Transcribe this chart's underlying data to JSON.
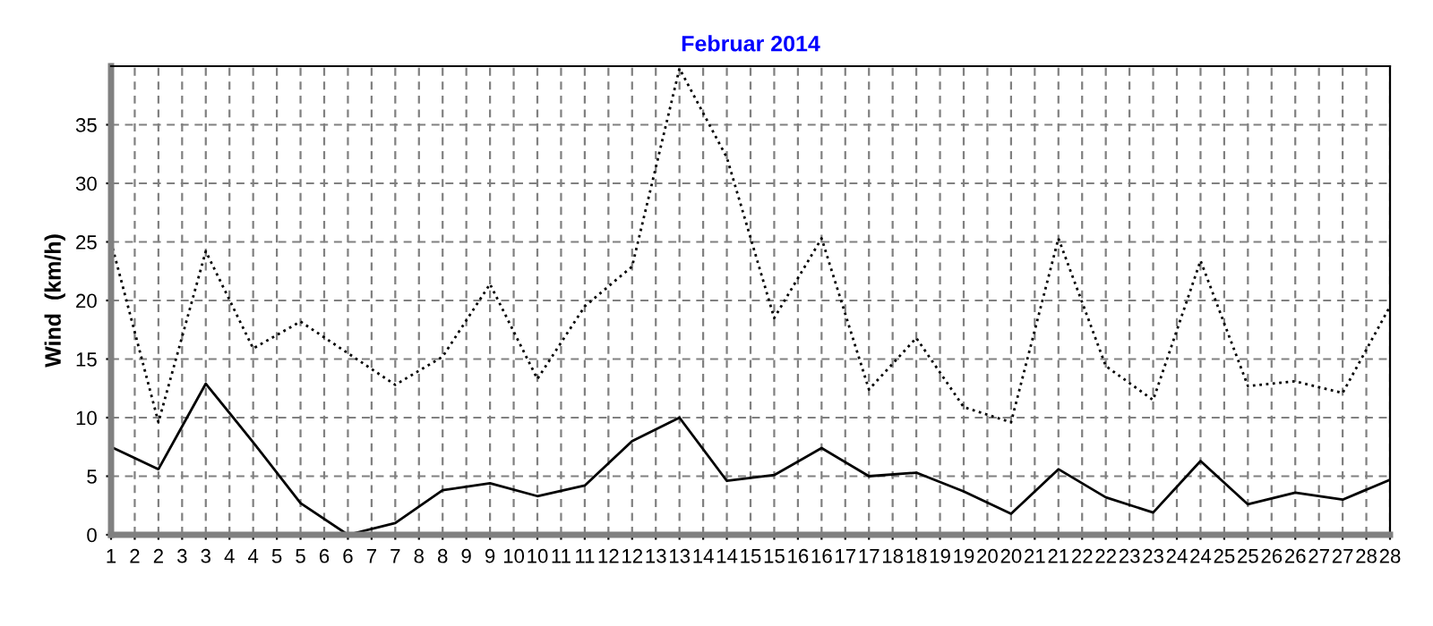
{
  "chart_data": {
    "type": "line",
    "title": "Februar 2014",
    "ylabel": "Wind  (km/h)",
    "x": [
      1,
      2,
      3,
      4,
      5,
      6,
      7,
      8,
      9,
      10,
      11,
      12,
      13,
      14,
      15,
      16,
      17,
      18,
      19,
      20,
      21,
      22,
      23,
      24,
      25,
      26,
      27,
      28
    ],
    "series": [
      {
        "color": "#000000",
        "line_style": "dotted",
        "values": [
          25,
          9.6,
          24.2,
          15.9,
          18.2,
          15.5,
          12.8,
          15.2,
          21.4,
          13.3,
          19.5,
          22.9,
          39.8,
          32.2,
          18.5,
          25.3,
          12.4,
          16.8,
          10.9,
          9.6,
          25.3,
          14.4,
          11.5,
          23.4,
          12.7,
          13.1,
          12.1,
          19.5
        ]
      },
      {
        "color": "#000000",
        "line_style": "solid",
        "values": [
          7.5,
          5.6,
          12.9,
          7.9,
          2.7,
          0,
          1.0,
          3.8,
          4.4,
          3.3,
          4.2,
          8.0,
          10.0,
          4.6,
          5.1,
          7.4,
          5.0,
          5.3,
          3.7,
          1.8,
          5.6,
          3.2,
          1.9,
          6.3,
          2.6,
          3.6,
          3.0,
          4.7
        ]
      }
    ],
    "xlim": [
      1,
      28
    ],
    "xticks": [
      1,
      {
        "value": 1.5,
        "label": "2"
      },
      2,
      {
        "value": 2.5,
        "label": "3"
      },
      3,
      {
        "value": 3.5,
        "label": "4"
      },
      4,
      {
        "value": 4.5,
        "label": "5"
      },
      5,
      {
        "value": 5.5,
        "label": "6"
      },
      6,
      {
        "value": 6.5,
        "label": "7"
      },
      7,
      {
        "value": 7.5,
        "label": "8"
      },
      8,
      {
        "value": 8.5,
        "label": "9"
      },
      9,
      {
        "value": 9.5,
        "label": "10"
      },
      10,
      {
        "value": 10.5,
        "label": "11"
      },
      11,
      {
        "value": 11.5,
        "label": "12"
      },
      12,
      {
        "value": 12.5,
        "label": "13"
      },
      13,
      {
        "value": 13.5,
        "label": "14"
      },
      14,
      {
        "value": 14.5,
        "label": "15"
      },
      15,
      {
        "value": 15.5,
        "label": "16"
      },
      16,
      {
        "value": 16.5,
        "label": "17"
      },
      17,
      {
        "value": 17.5,
        "label": "18"
      },
      18,
      {
        "value": 18.5,
        "label": "19"
      },
      19,
      {
        "value": 19.5,
        "label": "20"
      },
      20,
      {
        "value": 20.5,
        "label": "21"
      },
      21,
      {
        "value": 21.5,
        "label": "22"
      },
      22,
      {
        "value": 22.5,
        "label": "23"
      },
      23,
      {
        "value": 23.5,
        "label": "24"
      },
      24,
      {
        "value": 24.5,
        "label": "25"
      },
      25,
      {
        "value": 25.5,
        "label": "26"
      },
      26,
      {
        "value": 26.5,
        "label": "27"
      },
      27,
      {
        "value": 27.5,
        "label": "28"
      },
      28
    ],
    "ylim": [
      0,
      40
    ],
    "yticks": [
      0,
      5,
      10,
      15,
      20,
      25,
      30,
      35
    ],
    "grid": true,
    "legend": false
  }
}
